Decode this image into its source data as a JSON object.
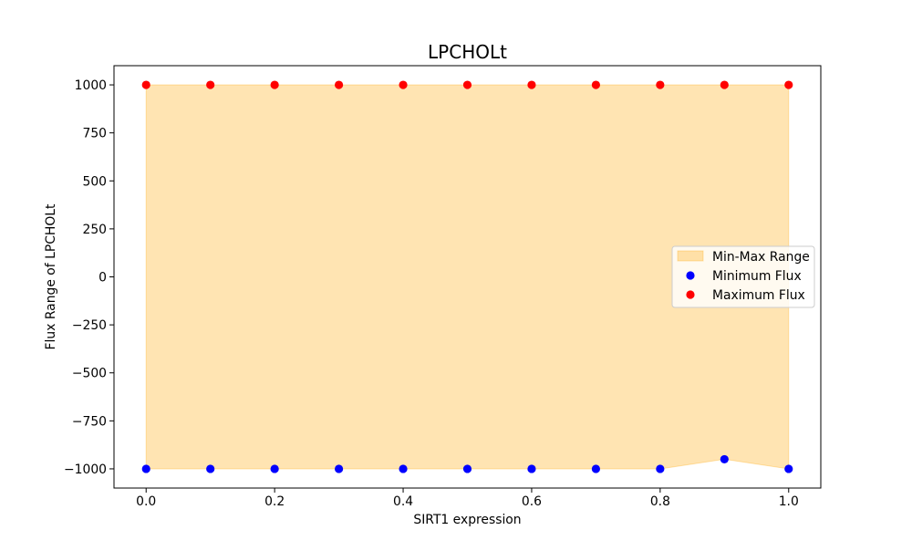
{
  "chart_data": {
    "type": "scatter",
    "title": "LPCHOLt",
    "xlabel": "SIRT1 expression",
    "ylabel": "Flux Range of LPCHOLt",
    "x": [
      0.0,
      0.1,
      0.2,
      0.3,
      0.4,
      0.5,
      0.6,
      0.7,
      0.8,
      0.9,
      1.0
    ],
    "series": [
      {
        "name": "Minimum Flux",
        "color": "#0000ff",
        "values": [
          -1000,
          -1000,
          -1000,
          -1000,
          -1000,
          -1000,
          -1000,
          -1000,
          -1000,
          -950,
          -1000
        ]
      },
      {
        "name": "Maximum Flux",
        "color": "#ff0000",
        "values": [
          1000,
          1000,
          1000,
          1000,
          1000,
          1000,
          1000,
          1000,
          1000,
          1000,
          1000
        ]
      }
    ],
    "fill": {
      "name": "Min-Max Range",
      "color": "#ffa500",
      "alpha": 0.3,
      "lower": "Minimum Flux",
      "upper": "Maximum Flux"
    },
    "xlim": [
      -0.05,
      1.05
    ],
    "ylim": [
      -1100,
      1100
    ],
    "xticks": [
      0.0,
      0.2,
      0.4,
      0.6,
      0.8,
      1.0
    ],
    "xtick_labels": [
      "0.0",
      "0.2",
      "0.4",
      "0.6",
      "0.8",
      "1.0"
    ],
    "yticks": [
      1000,
      750,
      500,
      250,
      0,
      -250,
      -500,
      -750,
      -1000
    ],
    "ytick_labels": [
      "1000",
      "750",
      "500",
      "250",
      "0",
      "−250",
      "−500",
      "−750",
      "−1000"
    ],
    "grid": false,
    "legend_position": "center right"
  }
}
